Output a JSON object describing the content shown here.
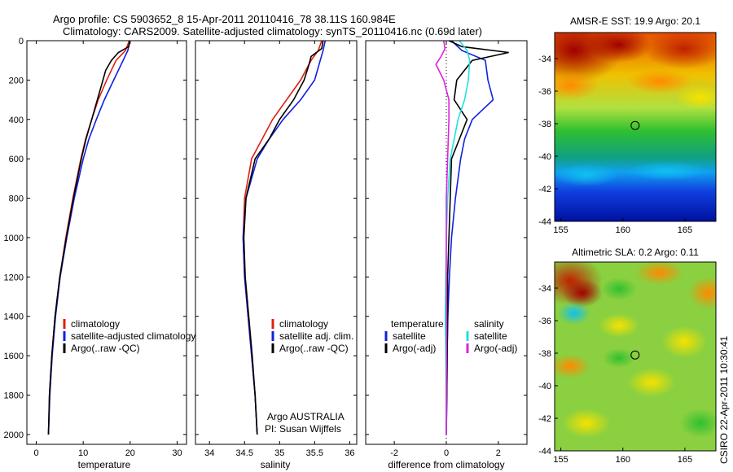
{
  "figure": {
    "title_line1": "Argo profile: CS 5903652_8 15-Apr-2011 20110416_78 38.11S 160.984E",
    "title_line2": "Climatology: CARS2009. Satellite-adjusted climatology: synTS_20110416.nc (0.69d later)",
    "credit_line1": "Argo AUSTRALIA",
    "credit_line2": "PI: Susan Wijffels",
    "side_stamp": "CSIRO 22-Apr-2011 10:30:41"
  },
  "colors": {
    "climatology": "#e02010",
    "satellite": "#1020e0",
    "argo": "#000000",
    "salinity_satellite": "#20e0e0",
    "salinity_argo": "#e020e0"
  },
  "chart_data": [
    {
      "type": "line",
      "name": "temperature-profile",
      "xlabel": "temperature",
      "ylabel": "",
      "xlim": [
        -2,
        32
      ],
      "ylim": [
        2050,
        0
      ],
      "xticks": [
        0,
        10,
        20,
        30
      ],
      "yticks": [
        0,
        200,
        400,
        600,
        800,
        1000,
        1200,
        1400,
        1600,
        1800,
        2000
      ],
      "legend": [
        "climatology",
        "satellite-adjusted climatology",
        "Argo(..raw -QC)"
      ],
      "series": [
        {
          "name": "climatology",
          "y": [
            0,
            50,
            100,
            200,
            300,
            400,
            500,
            600,
            800,
            1000,
            1200,
            1400,
            1600,
            1800,
            2000
          ],
          "values": [
            19.8,
            19.0,
            17.0,
            15.0,
            13.2,
            11.8,
            10.5,
            9.5,
            7.8,
            6.3,
            5.0,
            4.0,
            3.3,
            2.8,
            2.6
          ]
        },
        {
          "name": "satellite-adjusted climatology",
          "y": [
            0,
            50,
            100,
            200,
            300,
            400,
            500,
            600,
            800,
            1000,
            1200,
            1400,
            1600,
            1800,
            2000
          ],
          "values": [
            20.0,
            19.5,
            18.5,
            16.5,
            14.5,
            12.8,
            11.2,
            10.0,
            8.1,
            6.5,
            5.1,
            4.1,
            3.4,
            2.9,
            2.6
          ]
        },
        {
          "name": "Argo(..raw -QC)",
          "y": [
            0,
            30,
            60,
            100,
            150,
            200,
            300,
            400,
            500,
            600,
            800,
            1000,
            1200,
            1400,
            1600,
            1800,
            2000
          ],
          "values": [
            19.9,
            19.7,
            17.5,
            16.0,
            14.8,
            14.2,
            13.0,
            11.8,
            10.6,
            9.6,
            7.9,
            6.4,
            5.0,
            4.0,
            3.3,
            2.8,
            2.6
          ]
        }
      ]
    },
    {
      "type": "line",
      "name": "salinity-profile",
      "xlabel": "salinity",
      "ylabel": "",
      "xlim": [
        33.8,
        36.1
      ],
      "ylim": [
        2050,
        0
      ],
      "xticks": [
        34,
        34.5,
        35,
        35.5,
        36
      ],
      "legend": [
        "climatology",
        "satellite adj. clim.",
        "Argo(..raw -QC)"
      ],
      "series": [
        {
          "name": "climatology",
          "y": [
            0,
            50,
            100,
            200,
            300,
            400,
            500,
            600,
            800,
            1000,
            1200,
            1400,
            1600,
            1800,
            2000
          ],
          "values": [
            35.6,
            35.55,
            35.45,
            35.3,
            35.1,
            34.9,
            34.75,
            34.6,
            34.5,
            34.48,
            34.5,
            34.55,
            34.6,
            34.65,
            34.68
          ]
        },
        {
          "name": "satellite adj. clim.",
          "y": [
            0,
            50,
            100,
            200,
            300,
            400,
            500,
            600,
            800,
            1000,
            1200,
            1400,
            1600,
            1800,
            2000
          ],
          "values": [
            35.65,
            35.62,
            35.58,
            35.5,
            35.3,
            35.05,
            34.85,
            34.68,
            34.52,
            34.48,
            34.5,
            34.55,
            34.6,
            34.65,
            34.68
          ]
        },
        {
          "name": "Argo(..raw -QC)",
          "y": [
            0,
            40,
            80,
            120,
            200,
            300,
            400,
            500,
            600,
            800,
            1000,
            1200,
            1400,
            1600,
            1800,
            2000
          ],
          "values": [
            35.62,
            35.6,
            35.45,
            35.42,
            35.35,
            35.2,
            35.0,
            34.85,
            34.65,
            34.52,
            34.49,
            34.51,
            34.56,
            34.61,
            34.65,
            34.68
          ]
        }
      ]
    },
    {
      "type": "line",
      "name": "difference-profile",
      "xlabel": "difference from climatology",
      "ylabel": "",
      "xlim": [
        -3.1,
        3.1
      ],
      "ylim": [
        2050,
        0
      ],
      "xticks": [
        -2,
        0,
        2
      ],
      "legend_left_title": "temperature",
      "legend_right_title": "salinity",
      "legend": [
        "satellite",
        "Argo(-adj)",
        "satellite",
        "Argo(-adj)"
      ],
      "series": [
        {
          "name": "temperature satellite",
          "y": [
            0,
            50,
            100,
            200,
            300,
            400,
            500,
            600,
            700,
            800,
            1000,
            1200,
            1400,
            1600,
            1800,
            2000
          ],
          "values": [
            0.2,
            0.6,
            1.5,
            1.6,
            1.8,
            1.0,
            0.7,
            0.55,
            0.45,
            0.35,
            0.2,
            0.12,
            0.06,
            0.03,
            0.02,
            0.0
          ]
        },
        {
          "name": "temperature Argo(-adj)",
          "y": [
            0,
            30,
            60,
            100,
            150,
            200,
            300,
            400,
            500,
            600,
            800,
            1000,
            1200,
            1400,
            1600,
            1800,
            2000
          ],
          "values": [
            0.1,
            0.6,
            2.4,
            1.0,
            0.7,
            0.4,
            0.3,
            0.8,
            0.5,
            0.2,
            0.15,
            0.1,
            0.05,
            0.05,
            0.03,
            0.02,
            0.0
          ]
        },
        {
          "name": "salinity satellite",
          "y": [
            0,
            50,
            100,
            200,
            300,
            400,
            600,
            800,
            1000,
            1200,
            1400,
            1600,
            1800,
            2000
          ],
          "values": [
            0.5,
            0.8,
            0.9,
            0.85,
            0.7,
            0.45,
            0.15,
            0.05,
            0.0,
            -0.02,
            -0.04,
            -0.02,
            0.0,
            0.0
          ]
        },
        {
          "name": "salinity Argo(-adj)",
          "y": [
            0,
            40,
            80,
            120,
            200,
            300,
            400,
            600,
            800,
            1000,
            1200,
            1400,
            1600,
            1800,
            2000
          ],
          "values": [
            -0.1,
            -0.05,
            -0.2,
            -0.4,
            -0.1,
            0.1,
            0.1,
            0.05,
            0.0,
            0.0,
            0.0,
            0.01,
            0.01,
            0.0,
            0.0
          ]
        }
      ]
    },
    {
      "type": "heatmap",
      "name": "sst-map",
      "title": "AMSR-E SST: 19.9 Argo: 20.1",
      "xlim": [
        154.5,
        167.5
      ],
      "ylim": [
        -44,
        -32.4
      ],
      "xticks": [
        155,
        160,
        165
      ],
      "yticks": [
        -34,
        -36,
        -38,
        -40,
        -42,
        -44
      ],
      "marker": {
        "lon": 160.984,
        "lat": -38.11
      }
    },
    {
      "type": "heatmap",
      "name": "sla-map",
      "title": "Altimetric SLA: 0.2 Argo: 0.11",
      "xlim": [
        154.5,
        167.5
      ],
      "ylim": [
        -44,
        -32.4
      ],
      "xticks": [
        155,
        160,
        165
      ],
      "yticks": [
        -34,
        -36,
        -38,
        -40,
        -42,
        -44
      ],
      "marker": {
        "lon": 160.984,
        "lat": -38.11
      }
    }
  ]
}
